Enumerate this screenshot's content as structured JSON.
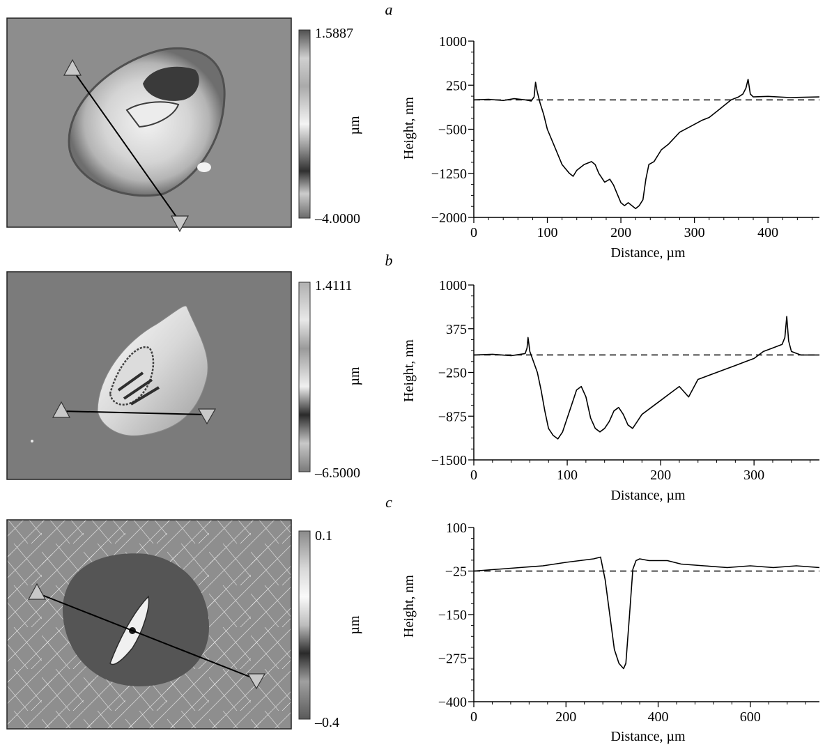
{
  "colors": {
    "ink": "#000000",
    "panel_border": "#222222"
  },
  "chart_data": [
    {
      "type": "line",
      "panel_letter": "a",
      "xlabel": "Distance, µm",
      "ylabel": "Height, nm",
      "xlim": [
        0,
        470
      ],
      "ylim": [
        -2000,
        1000
      ],
      "xticks": [
        0,
        100,
        200,
        300,
        400
      ],
      "yticks": [
        -2000,
        -1250,
        -500,
        250,
        1000
      ],
      "baseline": 0,
      "grid": false,
      "colorbar": {
        "max_label": "1.5887",
        "min_label": "–4.0000",
        "unit": "µm"
      },
      "image": {
        "background": "#8d8d8d",
        "kind": "pit_a"
      },
      "series": [
        {
          "x": [
            0,
            20,
            40,
            55,
            70,
            78,
            82,
            84,
            86,
            90,
            95,
            100,
            110,
            120,
            130,
            135,
            140,
            150,
            160,
            165,
            170,
            178,
            185,
            190,
            195,
            200,
            205,
            210,
            215,
            220,
            225,
            230,
            234,
            238,
            245,
            255,
            265,
            280,
            295,
            310,
            320,
            330,
            340,
            350,
            360,
            366,
            370,
            373,
            376,
            380,
            400,
            430,
            470
          ],
          "y": [
            0,
            10,
            -10,
            20,
            0,
            -20,
            50,
            300,
            150,
            -50,
            -250,
            -500,
            -800,
            -1100,
            -1250,
            -1300,
            -1200,
            -1100,
            -1050,
            -1100,
            -1250,
            -1400,
            -1350,
            -1450,
            -1600,
            -1750,
            -1800,
            -1750,
            -1800,
            -1850,
            -1800,
            -1700,
            -1350,
            -1100,
            -1050,
            -850,
            -750,
            -550,
            -450,
            -350,
            -300,
            -200,
            -100,
            0,
            50,
            100,
            200,
            350,
            100,
            50,
            60,
            40,
            50
          ]
        }
      ]
    },
    {
      "type": "line",
      "panel_letter": "b",
      "xlabel": "Distance, µm",
      "ylabel": "Height, nm",
      "xlim": [
        0,
        370
      ],
      "ylim": [
        -1500,
        1000
      ],
      "xticks": [
        0,
        100,
        200,
        300
      ],
      "yticks": [
        -1500,
        -875,
        -250,
        375,
        1000
      ],
      "baseline": 0,
      "grid": false,
      "colorbar": {
        "max_label": "1.4111",
        "min_label": "–6.5000",
        "unit": "µm"
      },
      "image": {
        "background": "#7b7b7b",
        "kind": "pit_b"
      },
      "series": [
        {
          "x": [
            0,
            20,
            40,
            55,
            57,
            58,
            60,
            64,
            68,
            72,
            76,
            80,
            85,
            90,
            95,
            100,
            105,
            110,
            115,
            120,
            125,
            130,
            135,
            140,
            145,
            150,
            155,
            160,
            165,
            170,
            175,
            180,
            190,
            200,
            210,
            220,
            230,
            240,
            250,
            260,
            270,
            280,
            290,
            300,
            310,
            320,
            330,
            333,
            335,
            337,
            340,
            350,
            370
          ],
          "y": [
            0,
            10,
            -10,
            20,
            100,
            250,
            50,
            -100,
            -250,
            -500,
            -800,
            -1050,
            -1150,
            -1200,
            -1100,
            -900,
            -700,
            -500,
            -450,
            -600,
            -900,
            -1050,
            -1100,
            -1050,
            -950,
            -800,
            -750,
            -850,
            -1000,
            -1050,
            -950,
            -850,
            -750,
            -650,
            -550,
            -450,
            -600,
            -350,
            -300,
            -250,
            -200,
            -150,
            -100,
            -50,
            50,
            100,
            150,
            250,
            550,
            200,
            50,
            0,
            0
          ]
        }
      ]
    },
    {
      "type": "line",
      "panel_letter": "c",
      "xlabel": "Distance, µm",
      "ylabel": "Height, nm",
      "xlim": [
        0,
        750
      ],
      "ylim": [
        -400,
        100
      ],
      "xticks": [
        0,
        200,
        400,
        600
      ],
      "yticks": [
        -400,
        -275,
        -150,
        -25,
        100
      ],
      "baseline": -25,
      "grid": false,
      "colorbar": {
        "max_label": "0.1",
        "min_label": "–0.4",
        "unit": "µm"
      },
      "image": {
        "background": "#909090",
        "kind": "pit_c"
      },
      "series": [
        {
          "x": [
            0,
            50,
            100,
            150,
            200,
            230,
            260,
            275,
            285,
            295,
            305,
            315,
            325,
            330,
            338,
            345,
            352,
            360,
            380,
            420,
            450,
            500,
            550,
            600,
            650,
            700,
            750
          ],
          "y": [
            -25,
            -20,
            -15,
            -10,
            0,
            5,
            10,
            15,
            -50,
            -150,
            -250,
            -290,
            -305,
            -290,
            -150,
            -20,
            5,
            10,
            5,
            5,
            -5,
            -10,
            -15,
            -10,
            -15,
            -10,
            -15
          ]
        }
      ]
    }
  ]
}
